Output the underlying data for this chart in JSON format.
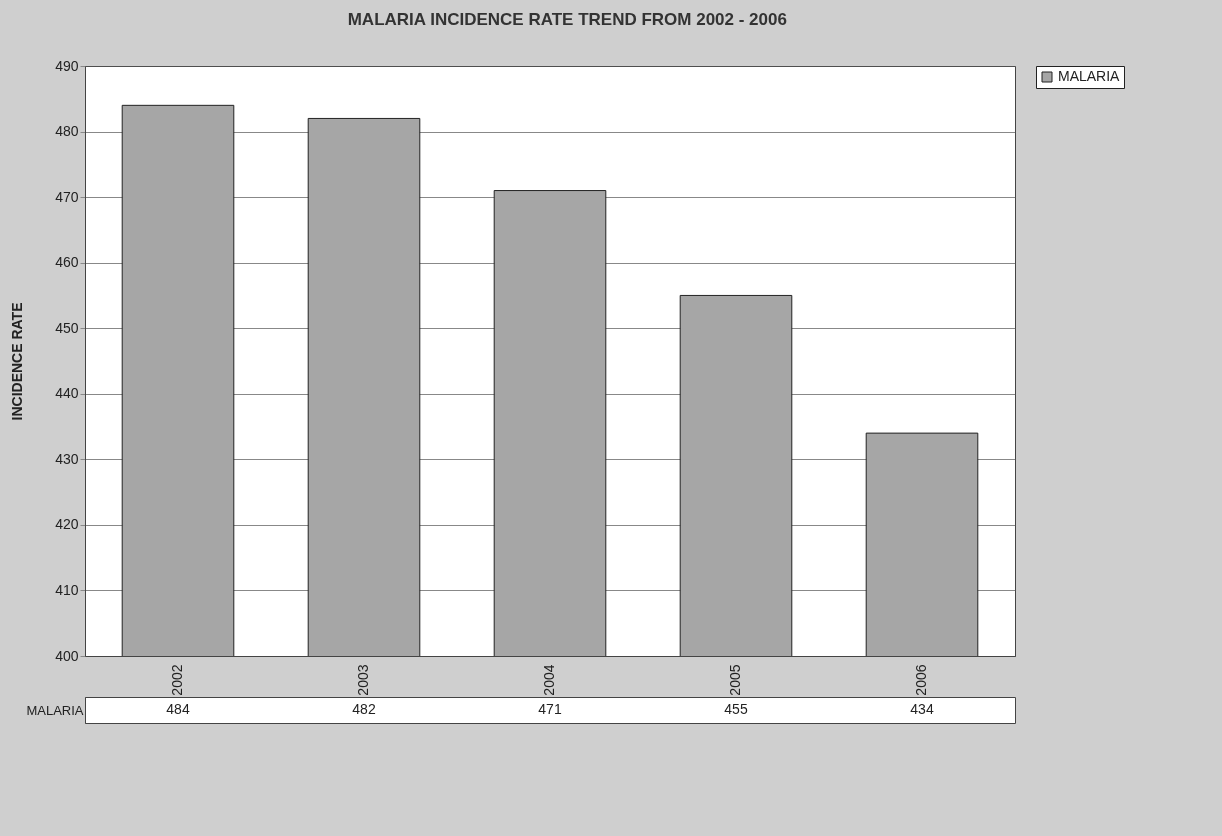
{
  "chart_data": {
    "type": "bar",
    "title": "MALARIA INCIDENCE RATE TREND FROM 2002 - 2006",
    "ylabel": "INCIDENCE RATE",
    "categories": [
      "2002",
      "2003",
      "2004",
      "2005",
      "2006"
    ],
    "series": [
      {
        "name": "MALARIA",
        "color": "#a6a6a6",
        "values": [
          484,
          482,
          471,
          455,
          434
        ]
      }
    ],
    "ylim": [
      400,
      490
    ],
    "yticks": [
      400,
      410,
      420,
      430,
      440,
      450,
      460,
      470,
      480,
      490
    ],
    "grid": "y",
    "legend": "right",
    "data_labels": true
  }
}
